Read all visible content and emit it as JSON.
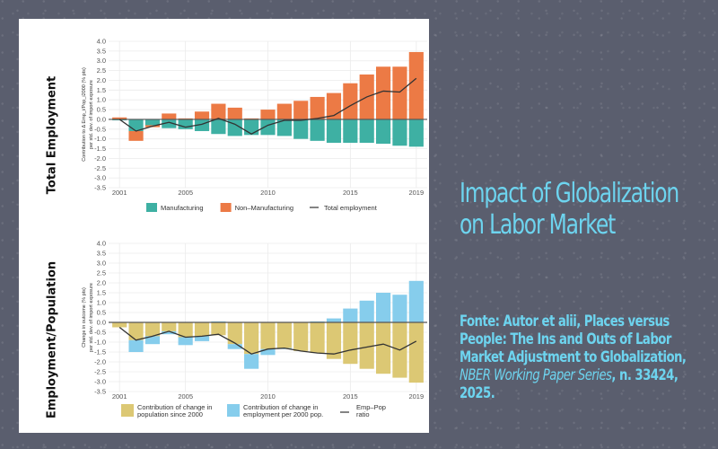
{
  "slide": {
    "title": "Impact of Globalization on Labor Market",
    "source_prefix": "Fonte: Autor et alii, Places versus People: The Ins and Outs of Labor Market Adjustment to Globalization, ",
    "source_journal": "NBER Working Paper Series",
    "source_suffix": ", n. 33424, 2025.",
    "colors": {
      "accent_text": "#6dd4ef",
      "background": "#5a5e6e"
    }
  },
  "chart_data": [
    {
      "type": "bar",
      "panel_title": "Total Employment",
      "ylabel_line1": "Contribution to Δ Emp_i/Pop_i2000 (% pts)",
      "ylabel_line2": "per std. dev. of import exposure",
      "x": [
        2001,
        2002,
        2003,
        2004,
        2005,
        2006,
        2007,
        2008,
        2009,
        2010,
        2011,
        2012,
        2013,
        2014,
        2015,
        2016,
        2017,
        2018,
        2019
      ],
      "xticks": [
        2001,
        2005,
        2010,
        2015,
        2019
      ],
      "ylim": [
        -3.5,
        4.0
      ],
      "yticks": [
        -3.5,
        -3.0,
        -2.5,
        -2.0,
        -1.5,
        -1.0,
        -0.5,
        0.0,
        0.5,
        1.0,
        1.5,
        2.0,
        2.5,
        3.0,
        3.5,
        4.0
      ],
      "stacked": true,
      "series": [
        {
          "name": "Manufacturing",
          "kind": "bar",
          "color": "#3eb0a3",
          "values": [
            -0.05,
            -0.6,
            -0.3,
            -0.45,
            -0.5,
            -0.6,
            -0.75,
            -0.85,
            -0.8,
            -0.8,
            -0.85,
            -1.0,
            -1.1,
            -1.2,
            -1.2,
            -1.2,
            -1.25,
            -1.35,
            -1.4
          ]
        },
        {
          "name": "Non–Manufacturing",
          "kind": "bar",
          "color": "#ec7a45",
          "values": [
            0.1,
            -0.5,
            -0.1,
            0.3,
            0.05,
            0.4,
            0.8,
            0.6,
            0.05,
            0.5,
            0.8,
            0.95,
            1.15,
            1.35,
            1.85,
            2.3,
            2.7,
            2.7,
            3.45
          ]
        },
        {
          "name": "Total employment",
          "kind": "line",
          "color": "#333333",
          "values": [
            0.0,
            -0.6,
            -0.35,
            -0.15,
            -0.4,
            -0.25,
            0.05,
            -0.25,
            -0.75,
            -0.3,
            -0.05,
            -0.05,
            0.05,
            0.2,
            0.7,
            1.15,
            1.45,
            1.4,
            2.1
          ]
        }
      ],
      "legend": "bottom",
      "grid": true
    },
    {
      "type": "bar",
      "panel_title": "Employment/Population",
      "ylabel_line1": "Change in outcome (% pts)",
      "ylabel_line2": "per std. dev. of import exposure",
      "x": [
        2001,
        2002,
        2003,
        2004,
        2005,
        2006,
        2007,
        2008,
        2009,
        2010,
        2011,
        2012,
        2013,
        2014,
        2015,
        2016,
        2017,
        2018,
        2019
      ],
      "xticks": [
        2001,
        2005,
        2010,
        2015,
        2019
      ],
      "ylim": [
        -3.5,
        4.0
      ],
      "yticks": [
        -3.5,
        -3.0,
        -2.5,
        -2.0,
        -1.5,
        -1.0,
        -0.5,
        0.0,
        0.5,
        1.0,
        1.5,
        2.0,
        2.5,
        3.0,
        3.5,
        4.0
      ],
      "stacked": true,
      "series": [
        {
          "name": "Contribution of change in population since 2000",
          "kind": "bar",
          "color": "#dcc874",
          "values": [
            -0.25,
            -0.9,
            -0.7,
            -0.45,
            -0.75,
            -0.7,
            -0.65,
            -1.1,
            -1.6,
            -1.35,
            -1.3,
            -1.45,
            -1.55,
            -1.85,
            -2.1,
            -2.35,
            -2.6,
            -2.8,
            -3.05
          ]
        },
        {
          "name": "Contribution of change in employment per 2000 pop.",
          "kind": "bar",
          "color": "#86cdec",
          "values": [
            0.0,
            -0.6,
            -0.4,
            -0.15,
            -0.4,
            -0.25,
            0.05,
            -0.25,
            -0.75,
            -0.3,
            -0.05,
            0.0,
            0.05,
            0.2,
            0.7,
            1.1,
            1.5,
            1.4,
            2.1
          ]
        },
        {
          "name": "Emp–Pop ratio",
          "kind": "line",
          "color": "#333333",
          "values": [
            -0.25,
            -0.9,
            -0.7,
            -0.45,
            -0.75,
            -0.7,
            -0.6,
            -1.05,
            -1.6,
            -1.35,
            -1.3,
            -1.45,
            -1.55,
            -1.6,
            -1.4,
            -1.25,
            -1.1,
            -1.4,
            -0.95
          ]
        }
      ],
      "legend": "bottom",
      "grid": true
    }
  ]
}
